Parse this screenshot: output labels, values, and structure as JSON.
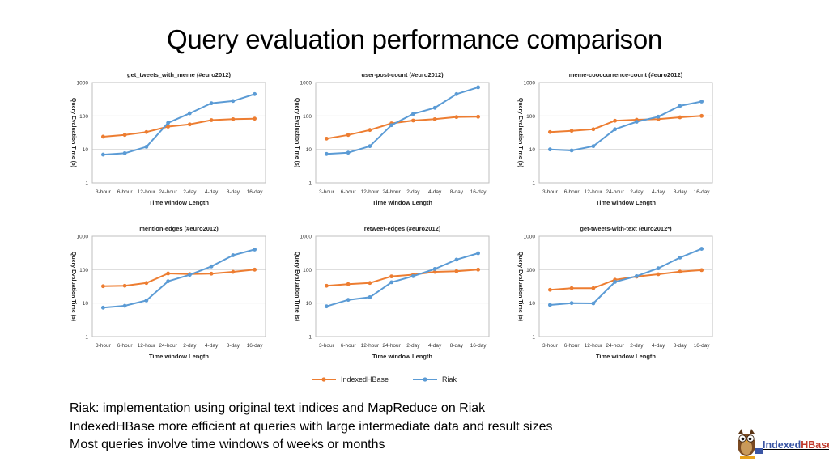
{
  "title": "Query evaluation performance comparison",
  "shared_axes": {
    "ylabel": "Query Evaluation Time (s)",
    "xlabel": "Time window Length",
    "categories": [
      "3-hour",
      "6-hour",
      "12-hour",
      "24-hour",
      "2-day",
      "4-day",
      "8-day",
      "16-day"
    ],
    "yticks": [
      "1",
      "10",
      "100",
      "1000"
    ]
  },
  "legend": [
    {
      "name": "IndexedHBase",
      "color": "#ED7D31"
    },
    {
      "name": "Riak",
      "color": "#5B9BD5"
    }
  ],
  "chart_data": [
    {
      "type": "line",
      "title": "get_tweets_with_meme (#euro2012)",
      "xlabel": "Time window Length",
      "ylabel": "Query Evaluation Time (s)",
      "yscale": "log",
      "ylim": [
        1,
        1000
      ],
      "grid": true,
      "categories": [
        "3-hour",
        "6-hour",
        "12-hour",
        "24-hour",
        "2-day",
        "4-day",
        "8-day",
        "16-day"
      ],
      "series": [
        {
          "name": "IndexedHBase",
          "color": "#ED7D31",
          "values": [
            24,
            27,
            33,
            48,
            56,
            75,
            80,
            83
          ]
        },
        {
          "name": "Riak",
          "color": "#5B9BD5",
          "values": [
            7,
            7.7,
            12,
            62,
            120,
            240,
            280,
            450
          ]
        }
      ]
    },
    {
      "type": "line",
      "title": "user-post-count (#euro2012)",
      "xlabel": "Time window Length",
      "ylabel": "Query Evaluation Time (s)",
      "yscale": "log",
      "ylim": [
        1,
        1000
      ],
      "grid": true,
      "categories": [
        "3-hour",
        "6-hour",
        "12-hour",
        "24-hour",
        "2-day",
        "4-day",
        "8-day",
        "16-day"
      ],
      "series": [
        {
          "name": "IndexedHBase",
          "color": "#ED7D31",
          "values": [
            21,
            27,
            38,
            60,
            73,
            80,
            93,
            95
          ]
        },
        {
          "name": "Riak",
          "color": "#5B9BD5",
          "values": [
            7.3,
            8,
            12.5,
            53,
            115,
            175,
            450,
            720
          ]
        }
      ]
    },
    {
      "type": "line",
      "title": "meme-cooccurrence-count (#euro2012)",
      "xlabel": "Time window Length",
      "ylabel": "Query Evaluation Time (s)",
      "yscale": "log",
      "ylim": [
        1,
        1000
      ],
      "grid": true,
      "categories": [
        "3-hour",
        "6-hour",
        "12-hour",
        "24-hour",
        "2-day",
        "4-day",
        "8-day",
        "16-day"
      ],
      "series": [
        {
          "name": "IndexedHBase",
          "color": "#ED7D31",
          "values": [
            33,
            36,
            40,
            72,
            77,
            80,
            91,
            100
          ]
        },
        {
          "name": "Riak",
          "color": "#5B9BD5",
          "values": [
            10,
            9.3,
            12.5,
            40,
            67,
            95,
            200,
            270
          ]
        }
      ]
    },
    {
      "type": "line",
      "title": "mention-edges (#euro2012)",
      "xlabel": "Time window Length",
      "ylabel": "Query Evaluation Time (s)",
      "yscale": "log",
      "ylim": [
        1,
        1000
      ],
      "grid": true,
      "categories": [
        "3-hour",
        "6-hour",
        "12-hour",
        "24-hour",
        "2-day",
        "4-day",
        "8-day",
        "16-day"
      ],
      "series": [
        {
          "name": "IndexedHBase",
          "color": "#ED7D31",
          "values": [
            32,
            33,
            40,
            77,
            74,
            76,
            86,
            100
          ]
        },
        {
          "name": "Riak",
          "color": "#5B9BD5",
          "values": [
            7.3,
            8.3,
            12,
            45,
            70,
            125,
            270,
            400
          ]
        }
      ]
    },
    {
      "type": "line",
      "title": "retweet-edges (#euro2012)",
      "xlabel": "Time window Length",
      "ylabel": "Query Evaluation Time (s)",
      "yscale": "log",
      "ylim": [
        1,
        1000
      ],
      "grid": true,
      "categories": [
        "3-hour",
        "6-hour",
        "12-hour",
        "24-hour",
        "2-day",
        "4-day",
        "8-day",
        "16-day"
      ],
      "series": [
        {
          "name": "IndexedHBase",
          "color": "#ED7D31",
          "values": [
            33,
            37,
            40,
            63,
            71,
            86,
            90,
            100
          ]
        },
        {
          "name": "Riak",
          "color": "#5B9BD5",
          "values": [
            8,
            12.5,
            15,
            42,
            64,
            105,
            200,
            310
          ]
        }
      ]
    },
    {
      "type": "line",
      "title": "get-tweets-with-text (euro2012*)",
      "xlabel": "Time window Length",
      "ylabel": "Query Evaluation Time (s)",
      "yscale": "log",
      "ylim": [
        1,
        1000
      ],
      "grid": true,
      "categories": [
        "3-hour",
        "6-hour",
        "12-hour",
        "24-hour",
        "2-day",
        "4-day",
        "8-day",
        "16-day"
      ],
      "series": [
        {
          "name": "IndexedHBase",
          "color": "#ED7D31",
          "values": [
            25,
            28,
            28,
            50,
            62,
            73,
            87,
            97
          ]
        },
        {
          "name": "Riak",
          "color": "#5B9BD5",
          "values": [
            8.8,
            10,
            9.8,
            43,
            64,
            110,
            230,
            420
          ]
        }
      ]
    }
  ],
  "notes": [
    "Riak: implementation using original text indices and MapReduce on Riak",
    "IndexedHBase more efficient at queries with large intermediate data and result sizes",
    "Most queries involve time windows of weeks or months"
  ],
  "logo": {
    "part1": "Indexed",
    "part2": "HBase"
  }
}
